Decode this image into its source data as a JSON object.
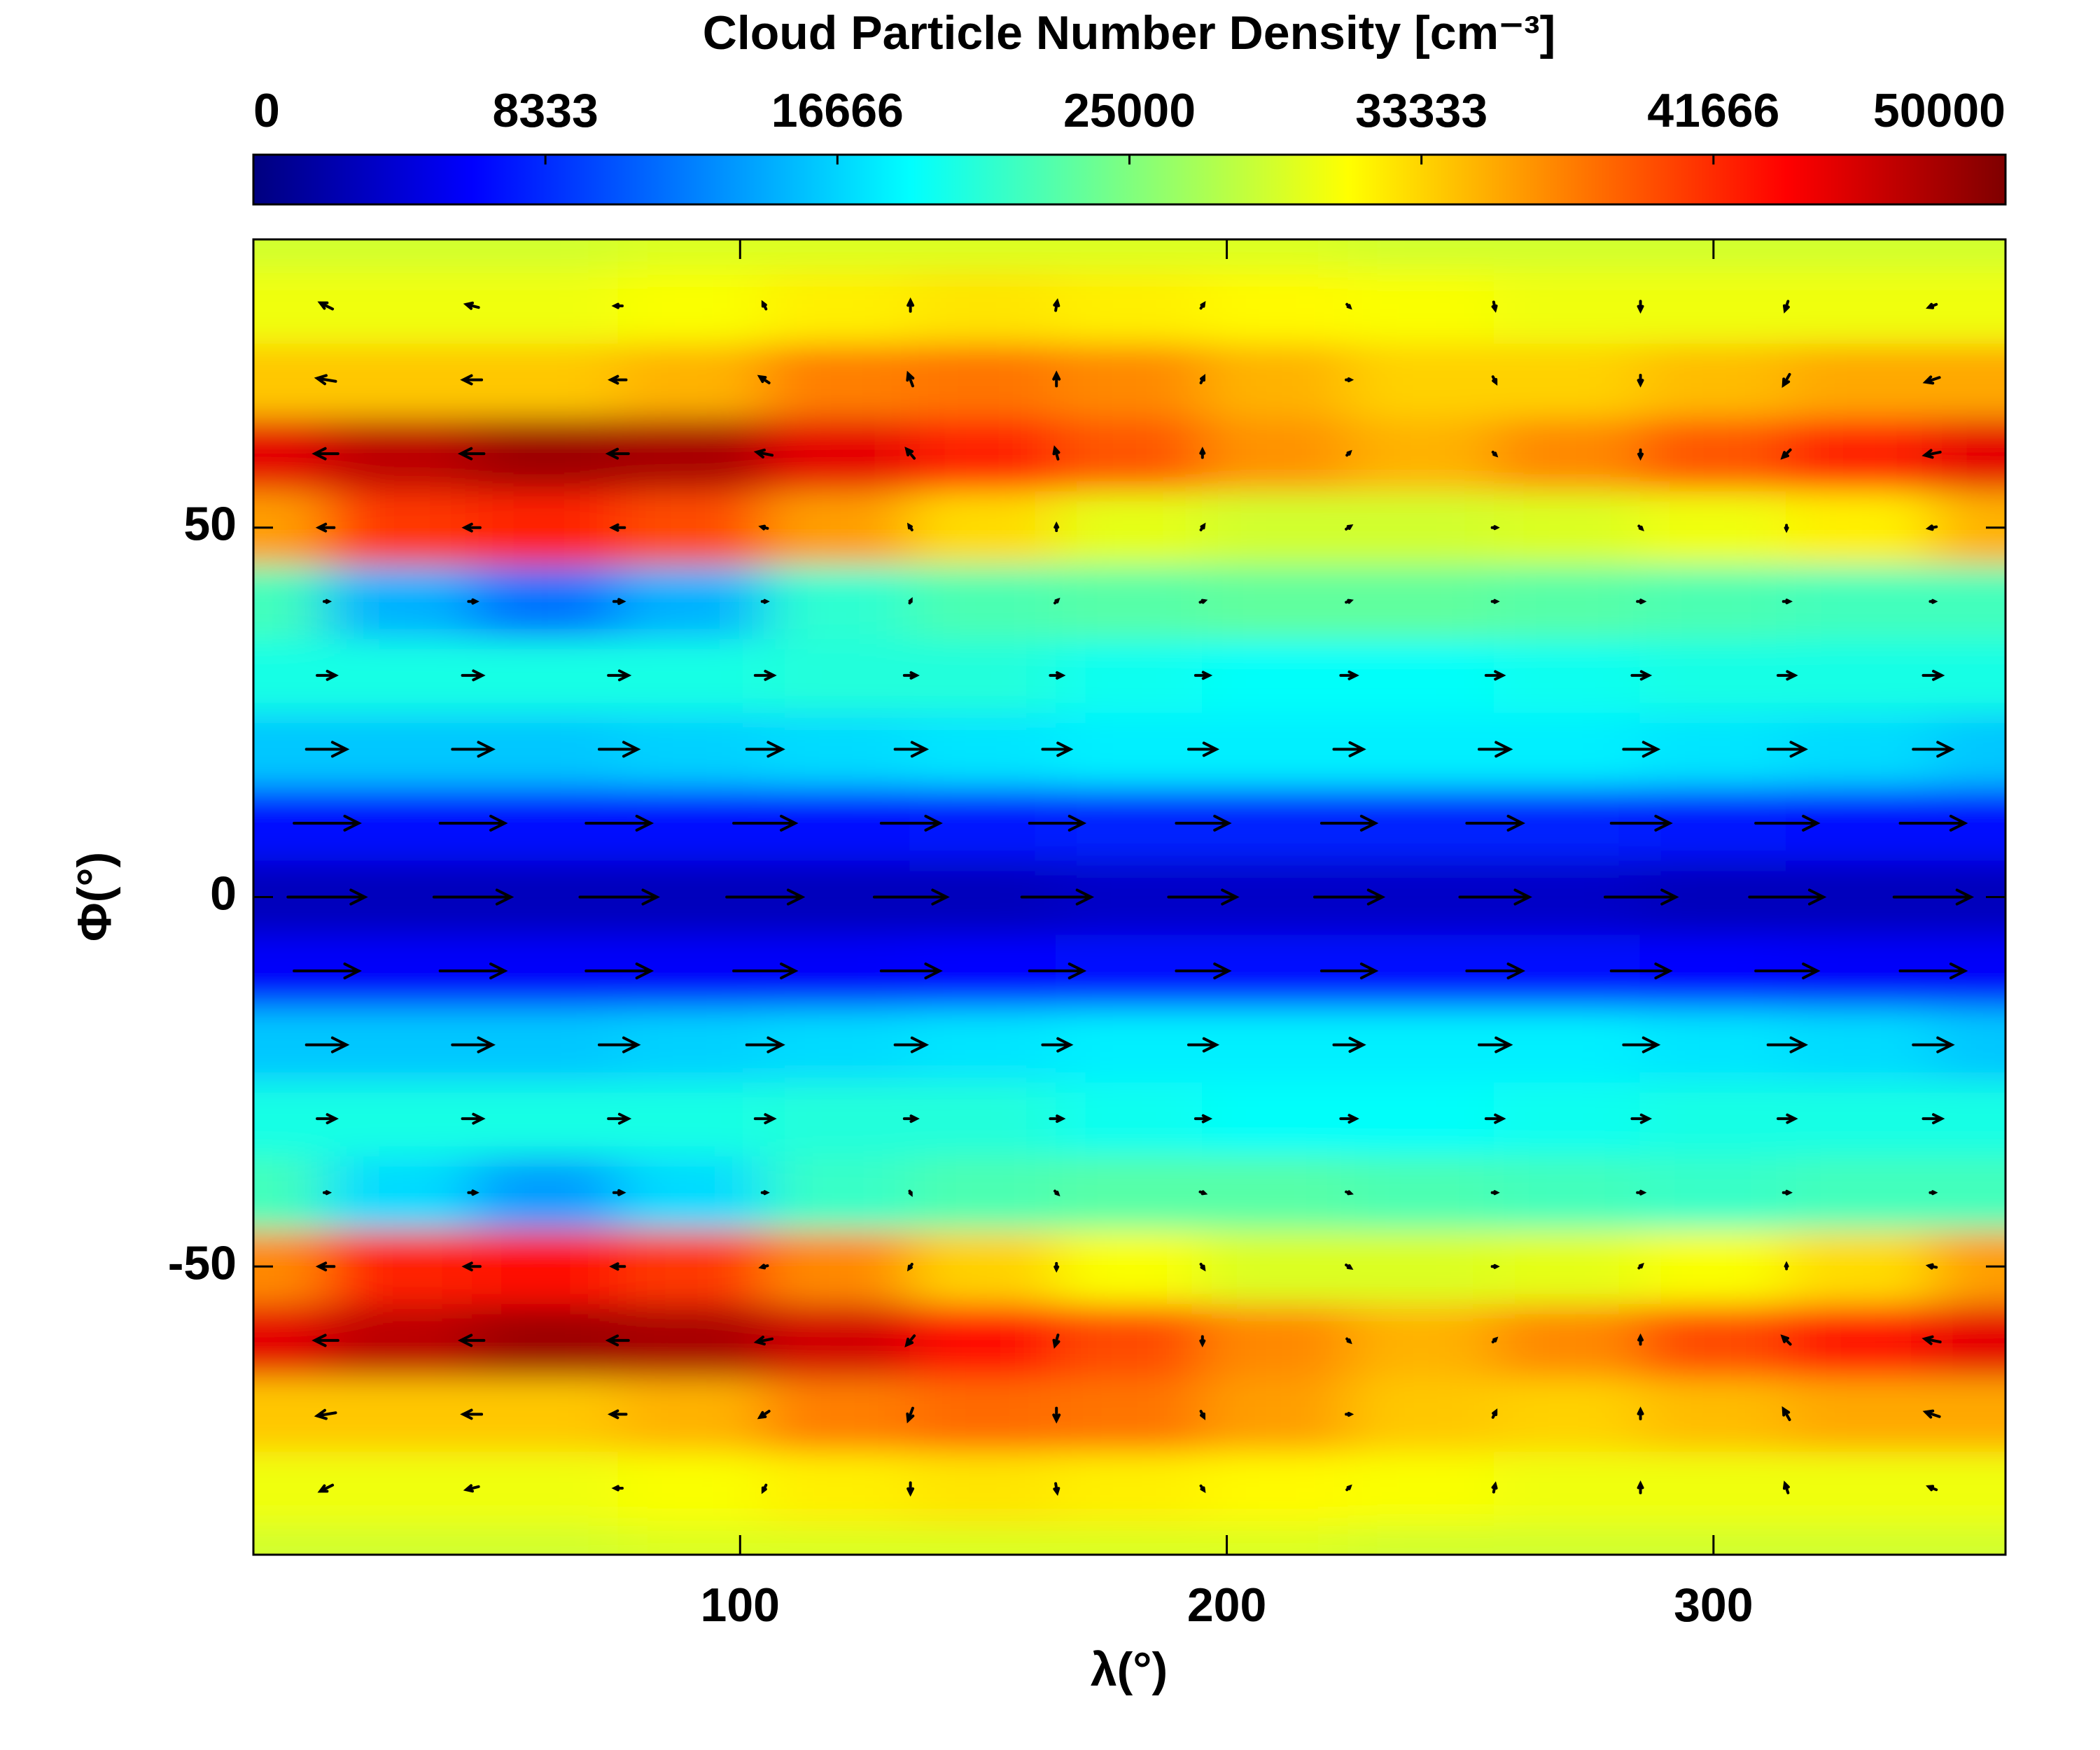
{
  "chart_data": {
    "type": "contour",
    "title": "Cloud Particle Number Density [cm⁻³]",
    "x_label": "λ(°)",
    "y_label": "Φ(°)",
    "xlim": [
      0,
      360
    ],
    "ylim": [
      -89,
      89
    ],
    "xticks": [
      100,
      200,
      300
    ],
    "yticks": [
      -50,
      0,
      50
    ],
    "clim": [
      0,
      50000
    ],
    "cticks": [
      0,
      8333,
      16666,
      25000,
      33333,
      41666,
      50000
    ],
    "colormap": [
      "#00007f",
      "#0000ff",
      "#007fff",
      "#00ffff",
      "#7fff7f",
      "#ffff00",
      "#ff7f00",
      "#ff0000",
      "#7f0000"
    ],
    "x": [
      0,
      30,
      60,
      90,
      120,
      150,
      180,
      210,
      240,
      270,
      300,
      330,
      360
    ],
    "y": [
      -90,
      -80,
      -70,
      -60,
      -50,
      -40,
      -30,
      -20,
      -10,
      0,
      10,
      20,
      30,
      40,
      50,
      60,
      70,
      80,
      90
    ],
    "z": [
      [
        29000,
        29000,
        29000,
        29500,
        29500,
        29500,
        29500,
        29500,
        29000,
        29000,
        29000,
        29000,
        29000
      ],
      [
        30500,
        30500,
        30500,
        31000,
        32000,
        32500,
        32000,
        31500,
        31000,
        30500,
        30500,
        30500,
        30500
      ],
      [
        34000,
        34000,
        34000,
        35000,
        37500,
        38500,
        38000,
        36000,
        34000,
        33500,
        34500,
        35500,
        35500
      ],
      [
        45000,
        47000,
        48500,
        48000,
        46000,
        43000,
        40000,
        37000,
        35000,
        37000,
        40000,
        42500,
        45000
      ],
      [
        37000,
        42000,
        43000,
        41000,
        37000,
        33500,
        31000,
        29500,
        29500,
        30000,
        31000,
        33000,
        36000
      ],
      [
        22000,
        17000,
        14000,
        17000,
        21500,
        22500,
        23000,
        23000,
        22500,
        22000,
        21500,
        22000,
        22000
      ],
      [
        20000,
        20000,
        20000,
        20000,
        20500,
        20500,
        19500,
        19000,
        19000,
        19500,
        20000,
        20000,
        20000
      ],
      [
        16000,
        16000,
        16000,
        16500,
        17000,
        17500,
        18000,
        18000,
        18000,
        18000,
        17500,
        17000,
        16000
      ],
      [
        6000,
        6000,
        6000,
        6000,
        6000,
        6500,
        7000,
        7000,
        7000,
        7000,
        6500,
        6000,
        6000
      ],
      [
        3000,
        3000,
        3000,
        3000,
        3000,
        3000,
        3500,
        3500,
        3500,
        3500,
        3000,
        3000,
        3000
      ],
      [
        7000,
        7000,
        7000,
        7000,
        7000,
        7500,
        8000,
        8000,
        8000,
        8000,
        7500,
        7000,
        7000
      ],
      [
        16000,
        16000,
        16000,
        16500,
        17000,
        17500,
        18000,
        18000,
        18000,
        18000,
        17500,
        17000,
        16000
      ],
      [
        20000,
        20000,
        20000,
        20000,
        20500,
        20500,
        19500,
        19000,
        19000,
        19500,
        20000,
        20000,
        20000
      ],
      [
        22000,
        15000,
        12000,
        15000,
        21000,
        22500,
        23000,
        23500,
        23500,
        23000,
        22500,
        22000,
        22000
      ],
      [
        36000,
        41000,
        42000,
        40000,
        36000,
        33000,
        30000,
        29000,
        29000,
        29500,
        30500,
        32000,
        35000
      ],
      [
        45000,
        47000,
        48500,
        48000,
        45000,
        42000,
        39500,
        36500,
        35000,
        37000,
        39500,
        42000,
        45000
      ],
      [
        34000,
        34000,
        34000,
        35000,
        37500,
        38000,
        37000,
        35000,
        33500,
        33500,
        34500,
        35500,
        35500
      ],
      [
        30500,
        30500,
        30500,
        31000,
        32000,
        32500,
        32000,
        31500,
        31000,
        30500,
        30500,
        30500,
        30500
      ],
      [
        29000,
        29000,
        29000,
        29500,
        29500,
        29500,
        29500,
        29500,
        29000,
        29000,
        29000,
        29000,
        29000
      ]
    ],
    "vectors": {
      "color": "#000000",
      "x": [
        15,
        45,
        75,
        105,
        135,
        165,
        195,
        225,
        255,
        285,
        315,
        345
      ],
      "y": [
        -80,
        -70,
        -60,
        -50,
        -40,
        -30,
        -20,
        -10,
        0,
        10,
        20,
        30,
        40,
        50,
        60,
        70,
        80
      ],
      "u": [
        [
          -0.8,
          -0.8,
          -0.5,
          -0.2,
          0,
          0.1,
          0.2,
          0.2,
          0.1,
          0,
          -0.2,
          -0.5
        ],
        [
          -1.2,
          -1.2,
          -1.0,
          -0.6,
          -0.3,
          0,
          0.2,
          0.3,
          0.2,
          0,
          -0.4,
          -0.9
        ],
        [
          -1.5,
          -1.5,
          -1.3,
          -1.0,
          -0.5,
          -0.2,
          0,
          0.2,
          0.2,
          0,
          -0.5,
          -1.0
        ],
        [
          -1.0,
          -1.0,
          -0.8,
          -0.4,
          -0.2,
          0,
          0.2,
          0.3,
          0.3,
          0.2,
          0,
          -0.5
        ],
        [
          0.3,
          0.5,
          0.6,
          0.3,
          0.1,
          0.2,
          0.3,
          0.3,
          0.3,
          0.4,
          0.4,
          0.3
        ],
        [
          1.2,
          1.3,
          1.3,
          1.2,
          0.8,
          0.8,
          0.9,
          1.0,
          1.1,
          1.1,
          1.1,
          1.2
        ],
        [
          2.6,
          2.6,
          2.5,
          2.3,
          2.0,
          1.8,
          1.8,
          1.9,
          2.0,
          2.2,
          2.4,
          2.5
        ],
        [
          4.2,
          4.2,
          4.2,
          4.0,
          3.8,
          3.5,
          3.4,
          3.5,
          3.6,
          3.8,
          4.0,
          4.2
        ],
        [
          5.0,
          5.0,
          5.0,
          4.9,
          4.7,
          4.5,
          4.4,
          4.4,
          4.5,
          4.6,
          4.8,
          5.0
        ],
        [
          4.2,
          4.2,
          4.2,
          4.0,
          3.8,
          3.5,
          3.4,
          3.5,
          3.6,
          3.8,
          4.0,
          4.2
        ],
        [
          2.6,
          2.6,
          2.5,
          2.3,
          2.0,
          1.8,
          1.8,
          1.9,
          2.0,
          2.2,
          2.4,
          2.5
        ],
        [
          1.2,
          1.3,
          1.3,
          1.2,
          0.8,
          0.8,
          0.9,
          1.0,
          1.1,
          1.1,
          1.1,
          1.2
        ],
        [
          0.3,
          0.5,
          0.6,
          0.3,
          0.1,
          0.2,
          0.3,
          0.3,
          0.3,
          0.4,
          0.4,
          0.3
        ],
        [
          -1.0,
          -1.0,
          -0.8,
          -0.4,
          -0.2,
          0,
          0.2,
          0.3,
          0.3,
          0.2,
          0,
          -0.5
        ],
        [
          -1.5,
          -1.5,
          -1.3,
          -1.0,
          -0.5,
          -0.2,
          0,
          0.2,
          0.2,
          0,
          -0.5,
          -1.0
        ],
        [
          -1.2,
          -1.2,
          -1.0,
          -0.6,
          -0.3,
          0,
          0.2,
          0.3,
          0.2,
          0,
          -0.4,
          -0.9
        ],
        [
          -0.8,
          -0.8,
          -0.5,
          -0.2,
          0,
          0.1,
          0.2,
          0.2,
          0.1,
          0,
          -0.2,
          -0.5
        ]
      ],
      "v": [
        [
          -0.4,
          -0.2,
          0,
          -0.4,
          -0.7,
          -0.6,
          -0.3,
          0.2,
          0.5,
          0.6,
          0.6,
          0.2
        ],
        [
          -0.2,
          0,
          0,
          -0.4,
          -0.8,
          -0.8,
          -0.4,
          0,
          0.4,
          0.6,
          0.7,
          0.3
        ],
        [
          0,
          0,
          0,
          -0.2,
          -0.6,
          -0.7,
          -0.5,
          -0.2,
          0.2,
          0.5,
          0.5,
          0.2
        ],
        [
          0,
          0,
          0,
          -0.1,
          -0.3,
          -0.4,
          -0.3,
          -0.2,
          0,
          0.2,
          0.3,
          0.1
        ],
        [
          0,
          0,
          0,
          0,
          -0.2,
          -0.2,
          -0.1,
          -0.1,
          0,
          0,
          0,
          0
        ],
        [
          0,
          0,
          0,
          0,
          0,
          0,
          0,
          0,
          0,
          0,
          0,
          0
        ],
        [
          0,
          0,
          0,
          0,
          0,
          0,
          0,
          0,
          0,
          0,
          0,
          0
        ],
        [
          0,
          0,
          0,
          0,
          0,
          0,
          0,
          0,
          0,
          0,
          0,
          0
        ],
        [
          0,
          0,
          0,
          0,
          0,
          0,
          0,
          0,
          0,
          0,
          0,
          0
        ],
        [
          0,
          0,
          0,
          0,
          0,
          0,
          0,
          0,
          0,
          0,
          0,
          0
        ],
        [
          0,
          0,
          0,
          0,
          0,
          0,
          0,
          0,
          0,
          0,
          0,
          0
        ],
        [
          0,
          0,
          0,
          0,
          0,
          0,
          0,
          0,
          0,
          0,
          0,
          0
        ],
        [
          0,
          0,
          0,
          0,
          0.2,
          0.2,
          0.1,
          0.1,
          0,
          0,
          0,
          0
        ],
        [
          0,
          0,
          0,
          0.1,
          0.3,
          0.4,
          0.3,
          0.2,
          0,
          -0.2,
          -0.3,
          -0.1
        ],
        [
          0,
          0,
          0,
          0.2,
          0.6,
          0.7,
          0.5,
          0.2,
          -0.2,
          -0.5,
          -0.5,
          -0.2
        ],
        [
          0.2,
          0,
          0,
          0.4,
          0.8,
          0.8,
          0.4,
          0,
          -0.4,
          -0.6,
          -0.7,
          -0.3
        ],
        [
          0.4,
          0.2,
          0,
          0.4,
          0.7,
          0.6,
          0.3,
          -0.2,
          -0.5,
          -0.6,
          -0.6,
          -0.2
        ]
      ]
    }
  }
}
